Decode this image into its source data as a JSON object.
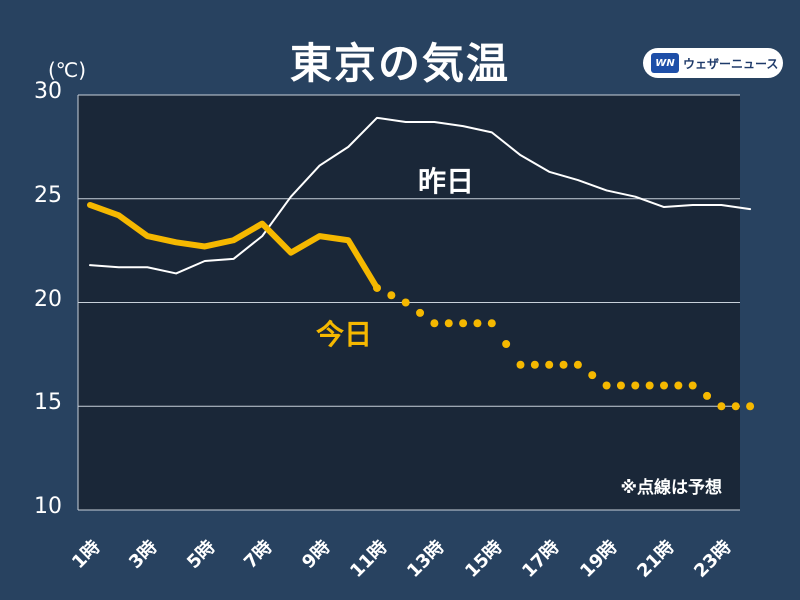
{
  "header": {
    "title": "東京の気温",
    "unit": "(℃)",
    "logo_mark": "WN",
    "logo_text": "ウェザーニュース"
  },
  "chart_data": {
    "type": "line",
    "title": "東京の気温",
    "ylabel": "(℃)",
    "ylim": [
      10,
      30
    ],
    "y_ticks": [
      "30",
      "25",
      "20",
      "15",
      "10"
    ],
    "y_tick_values": [
      30,
      25,
      20,
      15,
      10
    ],
    "x_tick_labels": [
      "1時",
      "3時",
      "5時",
      "7時",
      "9時",
      "11時",
      "13時",
      "15時",
      "17時",
      "19時",
      "21時",
      "23時"
    ],
    "x_tick_hours": [
      1,
      3,
      5,
      7,
      9,
      11,
      13,
      15,
      17,
      19,
      21,
      23
    ],
    "xlim": [
      1,
      24
    ],
    "grid": true,
    "series": [
      {
        "name": "昨日",
        "label": "昨日",
        "color": "#ffffff",
        "style": "solid-thin",
        "x": [
          1,
          2,
          3,
          4,
          5,
          6,
          7,
          8,
          9,
          10,
          11,
          12,
          13,
          14,
          15,
          16,
          17,
          18,
          19,
          20,
          21,
          22,
          23,
          24
        ],
        "values": [
          21.8,
          21.7,
          21.7,
          21.4,
          22.0,
          22.1,
          23.2,
          25.1,
          26.6,
          27.5,
          28.9,
          28.7,
          28.7,
          28.5,
          28.2,
          27.1,
          26.3,
          25.9,
          25.4,
          25.1,
          24.6,
          24.7,
          24.7,
          24.5
        ]
      },
      {
        "name": "今日",
        "label": "今日",
        "color": "#f5b800",
        "style": "solid-thick",
        "x": [
          1,
          2,
          3,
          4,
          5,
          6,
          7,
          8,
          9,
          10,
          11
        ],
        "values": [
          24.7,
          24.2,
          23.2,
          22.9,
          22.7,
          23.0,
          23.8,
          22.4,
          23.2,
          23.0,
          20.7
        ]
      },
      {
        "name": "今日(予想)",
        "color": "#f5b800",
        "style": "dotted",
        "x": [
          11,
          12,
          13,
          14,
          15,
          16,
          17,
          18,
          19,
          20,
          21,
          22,
          23,
          24
        ],
        "values": [
          20.7,
          20.0,
          19.0,
          19.0,
          19.0,
          17.0,
          17.0,
          17.0,
          16.0,
          16.0,
          16.0,
          16.0,
          15.0,
          15.0
        ]
      }
    ],
    "note": "※点線は予想"
  }
}
